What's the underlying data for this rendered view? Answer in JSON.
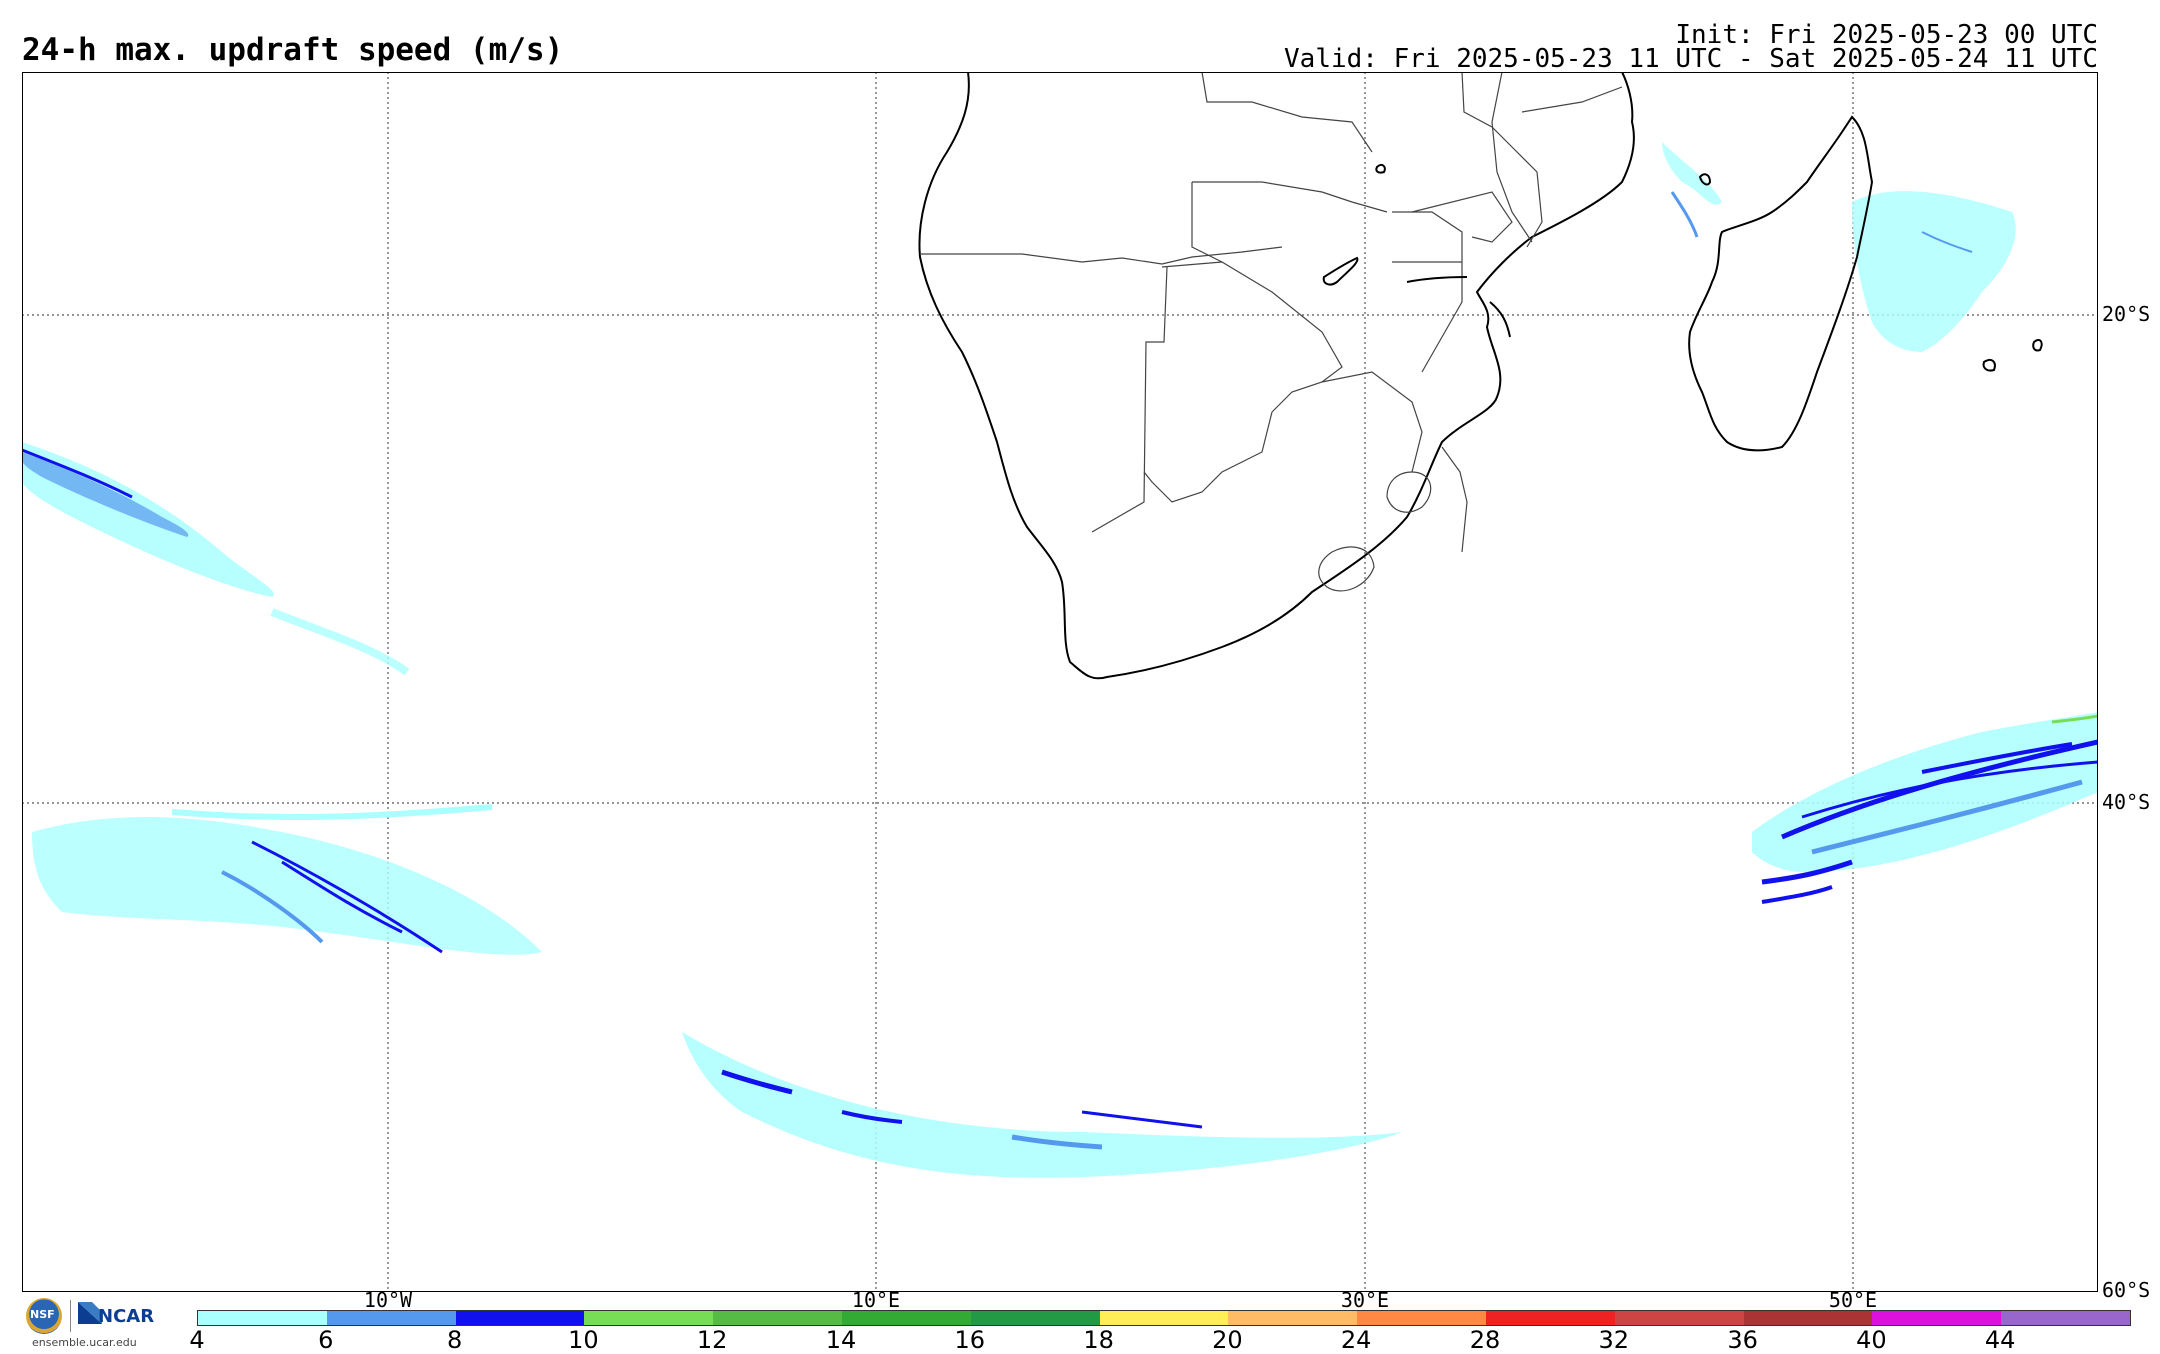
{
  "header": {
    "title": "24-h max. updraft speed (m/s)",
    "init": "Init: Fri 2025-05-23 00 UTC",
    "valid": "Valid: Fri 2025-05-23 11 UTC - Sat 2025-05-24 11 UTC"
  },
  "map": {
    "lat_labels": [
      "20°S",
      "40°S",
      "60°S"
    ],
    "lon_labels": [
      "10°W",
      "10°E",
      "30°E",
      "50°E"
    ]
  },
  "colorbar": {
    "ticks": [
      "4",
      "6",
      "8",
      "10",
      "12",
      "14",
      "16",
      "18",
      "20",
      "24",
      "28",
      "32",
      "36",
      "40",
      "44"
    ],
    "colors": [
      "#aaffff",
      "#5599ee",
      "#1111ee",
      "#77dd55",
      "#55bb44",
      "#33aa33",
      "#229944",
      "#ffee55",
      "#ffbb66",
      "#ff8844",
      "#ee2222",
      "#cc4444",
      "#aa3333",
      "#dd11dd",
      "#9966cc"
    ]
  },
  "logos": {
    "nsf": "NSF",
    "ncar": "NCAR",
    "site": "ensemble.ucar.edu"
  }
}
